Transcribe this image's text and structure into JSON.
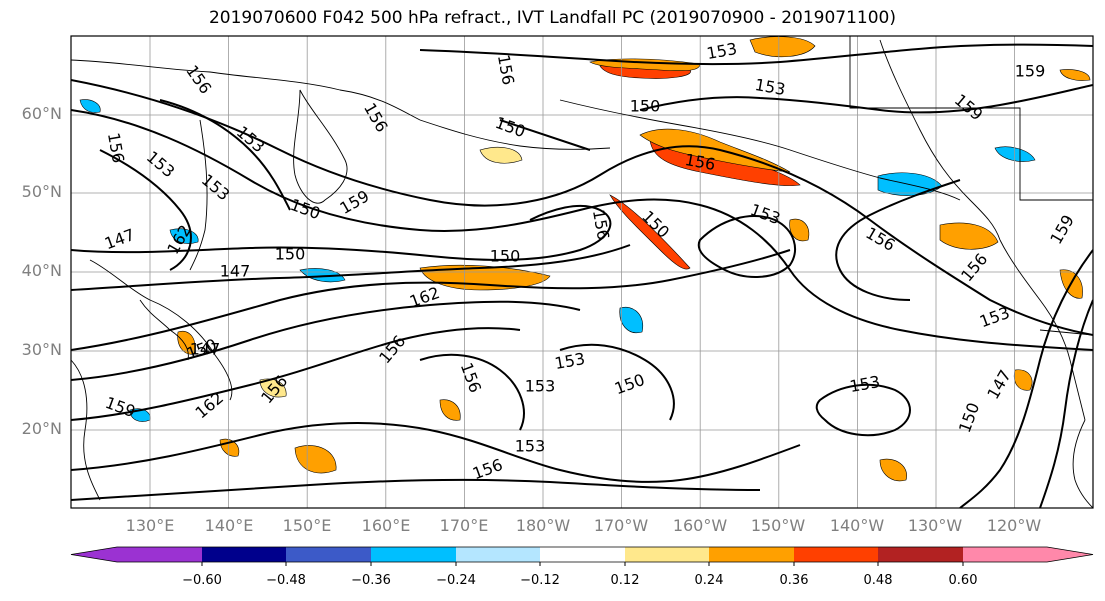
{
  "title": "2019070600 F042 500 hPa refract., IVT Landfall PC (2019070900 - 2019071100)",
  "lat_labels": [
    "60°N",
    "50°N",
    "40°N",
    "30°N",
    "20°N"
  ],
  "lon_labels": [
    "130°E",
    "140°E",
    "150°E",
    "160°E",
    "170°E",
    "180°W",
    "170°W",
    "160°W",
    "150°W",
    "140°W",
    "130°W",
    "120°W"
  ],
  "contour_labels": [
    "153",
    "159",
    "156",
    "150",
    "153",
    "156",
    "156",
    "159",
    "153",
    "150",
    "153",
    "156",
    "159",
    "153",
    "150",
    "156",
    "147",
    "162",
    "150",
    "156",
    "156",
    "147",
    "153",
    "150",
    "150",
    "156",
    "153",
    "159",
    "162",
    "156",
    "150",
    "153",
    "153",
    "156",
    "147",
    "153",
    "150",
    "147",
    "162",
    "159",
    "156",
    "150",
    "153",
    "156"
  ],
  "colorbar": {
    "ticks": [
      "−0.60",
      "−0.48",
      "−0.36",
      "−0.24",
      "−0.12",
      "0.12",
      "0.24",
      "0.36",
      "0.48",
      "0.60"
    ],
    "colors": [
      "#9b32d2",
      "#00008c",
      "#3c5ac8",
      "#00bfff",
      "#b4e6ff",
      "#ffffff",
      "#ffe88c",
      "#ffa000",
      "#ff4000",
      "#b22222",
      "#ff88aa"
    ]
  },
  "shade_colors": {
    "neg_strong": "#3c5ac8",
    "neg": "#00bfff",
    "neg_light": "#b4e6ff",
    "pos_light": "#ffe88c",
    "pos": "#ffa000",
    "pos_strong": "#ff4000",
    "pos_max": "#b22222"
  }
}
